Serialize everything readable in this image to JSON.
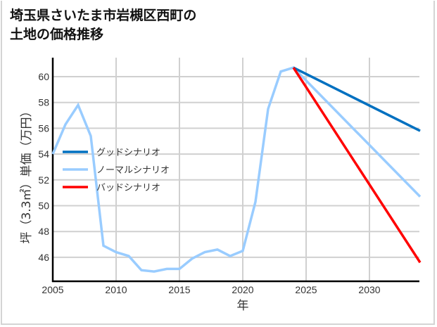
{
  "title_line1": "埼玉県さいたま市岩槻区西町の",
  "title_line2": "土地の価格推移",
  "chart_data": {
    "type": "line",
    "title": "埼玉県さいたま市岩槻区西町の土地の価格推移",
    "xlabel": "年",
    "ylabel": "坪（3.3㎡）単価（万円）",
    "xlim": [
      2005,
      2034
    ],
    "ylim": [
      44.2,
      61.3
    ],
    "xticks": [
      2005,
      2010,
      2015,
      2020,
      2025,
      2030
    ],
    "yticks": [
      46,
      48,
      50,
      52,
      54,
      56,
      58,
      60
    ],
    "grid": true,
    "legend_position": "left-middle",
    "series": [
      {
        "name": "グッドシナリオ",
        "color": "#0070c0",
        "x": [
          2024,
          2034
        ],
        "values": [
          60.7,
          55.8
        ]
      },
      {
        "name": "ノーマルシナリオ",
        "color": "#99ccff",
        "x": [
          2005,
          2006,
          2007,
          2008,
          2009,
          2010,
          2011,
          2012,
          2013,
          2014,
          2015,
          2016,
          2017,
          2018,
          2019,
          2020,
          2021,
          2022,
          2023,
          2024,
          2034
        ],
        "values": [
          54.0,
          56.3,
          57.8,
          55.4,
          46.9,
          46.4,
          46.1,
          45.0,
          44.9,
          45.1,
          45.1,
          45.9,
          46.4,
          46.6,
          46.1,
          46.5,
          50.3,
          57.5,
          60.4,
          60.7,
          50.7
        ]
      },
      {
        "name": "バッドシナリオ",
        "color": "#ff0000",
        "x": [
          2024,
          2034
        ],
        "values": [
          60.7,
          45.6
        ]
      }
    ]
  }
}
